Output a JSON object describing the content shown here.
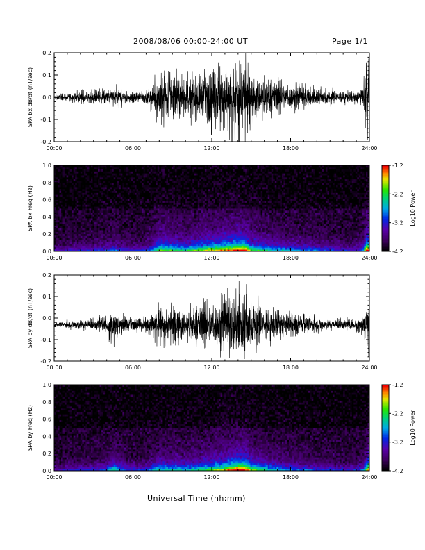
{
  "header": {
    "title": "2008/08/06  00:00-24:00 UT",
    "page": "Page 1/1"
  },
  "x_axis_title": "Universal Time (hh:mm)",
  "chart_data": [
    {
      "type": "line",
      "ylabel": "SPA bx dB/dt (nT/sec)",
      "xlim": [
        0,
        24
      ],
      "ylim": [
        -0.2,
        0.2
      ],
      "xticks": [
        "00:00",
        "06:00",
        "12:00",
        "18:00",
        "24:00"
      ],
      "yticks": [
        "-0.2",
        "-0.1",
        "0.0",
        "0.1",
        "0.2"
      ],
      "envelope": {
        "x": [
          0,
          1,
          2,
          3,
          4,
          4.5,
          5,
          6,
          7,
          7.5,
          8,
          9,
          10,
          11,
          12,
          13,
          14,
          14.5,
          15,
          16,
          17,
          18,
          19,
          20,
          21,
          22,
          23,
          23.5,
          23.8,
          24
        ],
        "amplitude": [
          0.01,
          0.02,
          0.03,
          0.03,
          0.04,
          0.06,
          0.04,
          0.03,
          0.04,
          0.06,
          0.14,
          0.12,
          0.1,
          0.13,
          0.15,
          0.17,
          0.2,
          0.2,
          0.12,
          0.1,
          0.08,
          0.07,
          0.06,
          0.05,
          0.04,
          0.03,
          0.03,
          0.05,
          0.2,
          0.2
        ]
      },
      "baseline": 0.0,
      "color": "#000000"
    },
    {
      "type": "heatmap",
      "ylabel": "SPA bx Freq (Hz)",
      "xlim": [
        0,
        24
      ],
      "ylim": [
        0.0,
        1.0
      ],
      "xticks": [
        "00:00",
        "06:00",
        "12:00",
        "18:00",
        "24:00"
      ],
      "yticks": [
        "0.0",
        "0.2",
        "0.4",
        "0.6",
        "0.8",
        "1.0"
      ],
      "colorbar": {
        "label": "Log10 Power",
        "ticks": [
          "-1.2",
          "-2.2",
          "-3.2",
          "-4.2"
        ],
        "range": [
          -4.2,
          -1.2
        ]
      }
    },
    {
      "type": "line",
      "ylabel": "SPA by dB/dt (nT/sec)",
      "xlim": [
        0,
        24
      ],
      "ylim": [
        -0.2,
        0.2
      ],
      "xticks": [
        "00:00",
        "06:00",
        "12:00",
        "18:00",
        "24:00"
      ],
      "yticks": [
        "-0.2",
        "-0.1",
        "0.0",
        "0.1",
        "0.2"
      ],
      "envelope": {
        "x": [
          0,
          1,
          2,
          3,
          4,
          4.5,
          5,
          6,
          7,
          7.5,
          8,
          9,
          10,
          11,
          12,
          13,
          14,
          14.5,
          15,
          16,
          17,
          18,
          19,
          20,
          21,
          22,
          23,
          23.5,
          23.8,
          24
        ],
        "amplitude": [
          0.01,
          0.02,
          0.03,
          0.03,
          0.05,
          0.1,
          0.06,
          0.03,
          0.04,
          0.07,
          0.1,
          0.09,
          0.08,
          0.1,
          0.12,
          0.15,
          0.2,
          0.2,
          0.13,
          0.1,
          0.07,
          0.06,
          0.05,
          0.04,
          0.03,
          0.03,
          0.03,
          0.05,
          0.13,
          0.2
        ]
      },
      "baseline": -0.03,
      "color": "#000000"
    },
    {
      "type": "heatmap",
      "ylabel": "SPA by Freq (Hz)",
      "xlim": [
        0,
        24
      ],
      "ylim": [
        0.0,
        1.0
      ],
      "xticks": [
        "00:00",
        "06:00",
        "12:00",
        "18:00",
        "24:00"
      ],
      "yticks": [
        "0.0",
        "0.2",
        "0.4",
        "0.6",
        "0.8",
        "1.0"
      ],
      "colorbar": {
        "label": "Log10 Power",
        "ticks": [
          "-1.2",
          "-2.2",
          "-3.2",
          "-4.2"
        ],
        "range": [
          -4.2,
          -1.2
        ]
      }
    }
  ]
}
